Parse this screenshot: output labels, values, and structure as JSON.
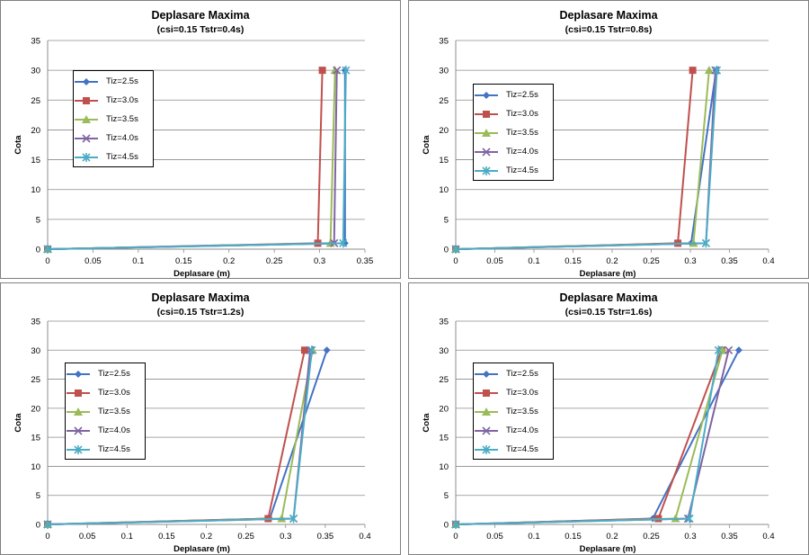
{
  "series_colors": [
    "#4472c4",
    "#c0504d",
    "#9bbb59",
    "#8064a2",
    "#4bacc6"
  ],
  "series_markers": [
    "diamond",
    "square",
    "triangle",
    "x",
    "star"
  ],
  "chart_data": [
    {
      "type": "line",
      "title": "Deplasare Maxima",
      "subtitle": "(csi=0.15  Tstr=0.4s)",
      "xlabel": "Deplasare (m)",
      "ylabel": "Cota",
      "xlim": [
        0,
        0.35
      ],
      "ylim": [
        0,
        35
      ],
      "xticks": [
        "0",
        "0.05",
        "0.1",
        "0.15",
        "0.2",
        "0.25",
        "0.3",
        "0.35"
      ],
      "yticks": [
        "0",
        "5",
        "10",
        "15",
        "20",
        "25",
        "30",
        "35"
      ],
      "grid": true,
      "legend_position": "left",
      "series": [
        {
          "name": "Tiz=2.5s",
          "x": [
            0,
            0.328,
            0.328
          ],
          "y": [
            0,
            1,
            30
          ]
        },
        {
          "name": "Tiz=3.0s",
          "x": [
            0,
            0.298,
            0.303
          ],
          "y": [
            0,
            1,
            30
          ]
        },
        {
          "name": "Tiz=3.5s",
          "x": [
            0,
            0.312,
            0.317
          ],
          "y": [
            0,
            1,
            30
          ]
        },
        {
          "name": "Tiz=4.0s",
          "x": [
            0,
            0.316,
            0.319
          ],
          "y": [
            0,
            1,
            30
          ]
        },
        {
          "name": "Tiz=4.5s",
          "x": [
            0,
            0.326,
            0.329
          ],
          "y": [
            0,
            1,
            30
          ]
        }
      ]
    },
    {
      "type": "line",
      "title": "Deplasare Maxima",
      "subtitle": "(csi=0.15  Tstr=0.8s)",
      "xlabel": "Deplasare (m)",
      "ylabel": "Cota",
      "xlim": [
        0,
        0.4
      ],
      "ylim": [
        0,
        35
      ],
      "xticks": [
        "0",
        "0.05",
        "0.1",
        "0.15",
        "0.2",
        "0.25",
        "0.3",
        "0.35",
        "0.4"
      ],
      "yticks": [
        "0",
        "5",
        "10",
        "15",
        "20",
        "25",
        "30",
        "35"
      ],
      "grid": true,
      "legend_position": "left",
      "series": [
        {
          "name": "Tiz=2.5s",
          "x": [
            0,
            0.301,
            0.333
          ],
          "y": [
            0,
            1,
            30
          ]
        },
        {
          "name": "Tiz=3.0s",
          "x": [
            0,
            0.284,
            0.303
          ],
          "y": [
            0,
            1,
            30
          ]
        },
        {
          "name": "Tiz=3.5s",
          "x": [
            0,
            0.304,
            0.324
          ],
          "y": [
            0,
            1,
            30
          ]
        },
        {
          "name": "Tiz=4.0s",
          "x": [
            0,
            0.32,
            0.332
          ],
          "y": [
            0,
            1,
            30
          ]
        },
        {
          "name": "Tiz=4.5s",
          "x": [
            0,
            0.32,
            0.334
          ],
          "y": [
            0,
            1,
            30
          ]
        }
      ]
    },
    {
      "type": "line",
      "title": "Deplasare Maxima",
      "subtitle": "(csi=0.15  Tstr=1.2s)",
      "xlabel": "Deplasare (m)",
      "ylabel": "Cota",
      "xlim": [
        0,
        0.4
      ],
      "ylim": [
        0,
        35
      ],
      "xticks": [
        "0",
        "0.05",
        "0.1",
        "0.15",
        "0.2",
        "0.25",
        "0.3",
        "0.35",
        "0.4"
      ],
      "yticks": [
        "0",
        "5",
        "10",
        "15",
        "20",
        "25",
        "30",
        "35"
      ],
      "grid": true,
      "legend_position": "left",
      "series": [
        {
          "name": "Tiz=2.5s",
          "x": [
            0,
            0.28,
            0.352
          ],
          "y": [
            0,
            1,
            30
          ]
        },
        {
          "name": "Tiz=3.0s",
          "x": [
            0,
            0.278,
            0.324
          ],
          "y": [
            0,
            1,
            30
          ]
        },
        {
          "name": "Tiz=3.5s",
          "x": [
            0,
            0.295,
            0.334
          ],
          "y": [
            0,
            1,
            30
          ]
        },
        {
          "name": "Tiz=4.0s",
          "x": [
            0,
            0.31,
            0.331
          ],
          "y": [
            0,
            1,
            30
          ]
        },
        {
          "name": "Tiz=4.5s",
          "x": [
            0,
            0.31,
            0.333
          ],
          "y": [
            0,
            1,
            30
          ]
        }
      ]
    },
    {
      "type": "line",
      "title": "Deplasare Maxima",
      "subtitle": "(csi=0.15  Tstr=1.6s)",
      "xlabel": "Deplasare (m)",
      "ylabel": "Cota",
      "xlim": [
        0,
        0.4
      ],
      "ylim": [
        0,
        35
      ],
      "xticks": [
        "0",
        "0.05",
        "0.1",
        "0.15",
        "0.2",
        "0.25",
        "0.3",
        "0.35",
        "0.4"
      ],
      "yticks": [
        "0",
        "5",
        "10",
        "15",
        "20",
        "25",
        "30",
        "35"
      ],
      "grid": true,
      "legend_position": "left",
      "series": [
        {
          "name": "Tiz=2.5s",
          "x": [
            0,
            0.252,
            0.362
          ],
          "y": [
            0,
            1,
            30
          ]
        },
        {
          "name": "Tiz=3.0s",
          "x": [
            0,
            0.259,
            0.34
          ],
          "y": [
            0,
            1,
            30
          ]
        },
        {
          "name": "Tiz=3.5s",
          "x": [
            0,
            0.281,
            0.341
          ],
          "y": [
            0,
            1,
            30
          ]
        },
        {
          "name": "Tiz=4.0s",
          "x": [
            0,
            0.297,
            0.349
          ],
          "y": [
            0,
            1,
            30
          ]
        },
        {
          "name": "Tiz=4.5s",
          "x": [
            0,
            0.299,
            0.336
          ],
          "y": [
            0,
            1,
            30
          ]
        }
      ]
    }
  ]
}
